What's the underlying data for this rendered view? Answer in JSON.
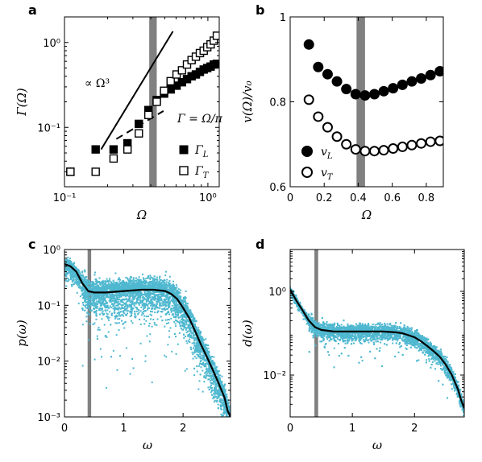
{
  "chart_data": [
    {
      "panel_letter": "a",
      "type": "scatter",
      "xscale": "log",
      "yscale": "log",
      "xlim": [
        0.1,
        1.2
      ],
      "ylim": [
        0.02,
        2.0
      ],
      "xlabel": "Ω",
      "ylabel": "Γ(Ω)",
      "xticks": [
        0.1,
        1
      ],
      "xtick_labels": [
        "10⁻¹",
        "10⁰"
      ],
      "yticks": [
        0.1,
        1
      ],
      "ytick_labels": [
        "10⁻¹",
        "10⁰"
      ],
      "shaded_band": [
        0.39,
        0.44
      ],
      "legend": {
        "position": "bottom-right",
        "entries": [
          "Γ_L",
          "Γ_T"
        ]
      },
      "annotations": [
        "∝ Ω³",
        "Γ = Ω/π"
      ],
      "reference_lines": [
        {
          "label": "∝ Ω³",
          "x": [
            0.18,
            0.57
          ],
          "y": [
            0.055,
            1.35
          ]
        },
        {
          "label": "Γ = Ω/π",
          "x": [
            0.23,
            0.49
          ],
          "y": [
            0.073,
            0.156
          ]
        }
      ],
      "series": [
        {
          "name": "Γ_L",
          "marker": "filled-square",
          "x": [
            0.11,
            0.165,
            0.22,
            0.275,
            0.33,
            0.385,
            0.44,
            0.495,
            0.55,
            0.605,
            0.66,
            0.715,
            0.77,
            0.825,
            0.88,
            0.935,
            0.99,
            1.045,
            1.1,
            1.155
          ],
          "y": [
            0.03,
            0.055,
            0.055,
            0.065,
            0.11,
            0.16,
            0.21,
            0.25,
            0.28,
            0.31,
            0.34,
            0.37,
            0.4,
            0.42,
            0.45,
            0.48,
            0.5,
            0.52,
            0.55,
            0.56
          ]
        },
        {
          "name": "Γ_T",
          "marker": "open-square",
          "x": [
            0.11,
            0.165,
            0.22,
            0.275,
            0.33,
            0.385,
            0.44,
            0.495,
            0.55,
            0.605,
            0.66,
            0.715,
            0.77,
            0.825,
            0.88,
            0.935,
            0.99,
            1.045,
            1.1,
            1.155
          ],
          "y": [
            0.03,
            0.03,
            0.043,
            0.055,
            0.085,
            0.14,
            0.2,
            0.27,
            0.35,
            0.42,
            0.47,
            0.55,
            0.62,
            0.68,
            0.75,
            0.8,
            0.88,
            0.95,
            1.05,
            1.2
          ]
        }
      ]
    },
    {
      "panel_letter": "b",
      "type": "scatter",
      "xlim": [
        0,
        0.9
      ],
      "ylim": [
        0.6,
        1.0
      ],
      "xlabel": "Ω",
      "ylabel": "v(Ω)/v₀",
      "xticks": [
        0,
        0.2,
        0.4,
        0.6,
        0.8
      ],
      "xtick_labels": [
        "0",
        "0.2",
        "0.4",
        "0.6",
        "0.8"
      ],
      "yticks": [
        0.6,
        0.8,
        1
      ],
      "ytick_labels": [
        "0.6",
        "0.8",
        "1"
      ],
      "shaded_band": [
        0.39,
        0.44
      ],
      "legend": {
        "position": "bottom-left",
        "entries": [
          "v_L",
          "v_T"
        ]
      },
      "series": [
        {
          "name": "v_L",
          "marker": "filled-circle",
          "x": [
            0.11,
            0.165,
            0.22,
            0.275,
            0.33,
            0.385,
            0.44,
            0.495,
            0.55,
            0.605,
            0.66,
            0.715,
            0.77,
            0.825,
            0.88
          ],
          "y": [
            0.935,
            0.882,
            0.865,
            0.848,
            0.83,
            0.818,
            0.815,
            0.818,
            0.825,
            0.832,
            0.84,
            0.848,
            0.855,
            0.863,
            0.872
          ]
        },
        {
          "name": "v_T",
          "marker": "open-circle",
          "x": [
            0.11,
            0.165,
            0.22,
            0.275,
            0.33,
            0.385,
            0.44,
            0.495,
            0.55,
            0.605,
            0.66,
            0.715,
            0.77,
            0.825,
            0.88
          ],
          "y": [
            0.805,
            0.765,
            0.74,
            0.718,
            0.7,
            0.688,
            0.684,
            0.684,
            0.686,
            0.69,
            0.694,
            0.698,
            0.702,
            0.706,
            0.708
          ]
        }
      ]
    },
    {
      "panel_letter": "c",
      "type": "scatter",
      "yscale": "log",
      "xlim": [
        0,
        2.8
      ],
      "ylim": [
        0.001,
        1.0
      ],
      "xlabel": "ω",
      "ylabel": "p(ω)",
      "xticks": [
        0,
        1,
        2
      ],
      "xtick_labels": [
        "0",
        "1",
        "2"
      ],
      "yticks": [
        0.001,
        0.01,
        0.1,
        1
      ],
      "ytick_labels": [
        "10⁻³",
        "10⁻²",
        "10⁻¹",
        "10⁰"
      ],
      "shaded_band": [
        0.39,
        0.45
      ],
      "scatter_color": "#4FB8D0",
      "line_color": "#000000",
      "mean_curve": {
        "x": [
          0.0,
          0.1,
          0.2,
          0.3,
          0.4,
          0.5,
          0.7,
          1.0,
          1.3,
          1.5,
          1.7,
          1.8,
          1.9,
          2.0,
          2.1,
          2.2,
          2.3,
          2.4,
          2.5,
          2.6,
          2.7,
          2.75,
          2.8
        ],
        "y": [
          0.55,
          0.5,
          0.4,
          0.25,
          0.18,
          0.17,
          0.17,
          0.18,
          0.19,
          0.19,
          0.18,
          0.16,
          0.13,
          0.09,
          0.06,
          0.035,
          0.02,
          0.012,
          0.007,
          0.004,
          0.0022,
          0.0013,
          0.001
        ]
      }
    },
    {
      "panel_letter": "d",
      "type": "scatter",
      "yscale": "log",
      "xlim": [
        0,
        2.8
      ],
      "ylim": [
        0.001,
        10.0
      ],
      "xlabel": "ω",
      "ylabel": "d(ω)",
      "xticks": [
        0,
        1,
        2
      ],
      "xtick_labels": [
        "0",
        "1",
        "2"
      ],
      "yticks": [
        0.01,
        1
      ],
      "ytick_labels": [
        "10⁻²",
        "10⁰"
      ],
      "shaded_band": [
        0.39,
        0.45
      ],
      "scatter_color": "#4FB8D0",
      "line_color": "#000000",
      "mean_curve": {
        "x": [
          0.0,
          0.1,
          0.2,
          0.3,
          0.4,
          0.5,
          0.7,
          1.0,
          1.3,
          1.5,
          1.7,
          1.8,
          1.9,
          2.0,
          2.1,
          2.2,
          2.3,
          2.4,
          2.5,
          2.6,
          2.7,
          2.75,
          2.8
        ],
        "y": [
          1.1,
          0.6,
          0.35,
          0.2,
          0.14,
          0.12,
          0.11,
          0.11,
          0.11,
          0.11,
          0.105,
          0.1,
          0.09,
          0.08,
          0.065,
          0.05,
          0.038,
          0.028,
          0.018,
          0.01,
          0.0045,
          0.0025,
          0.0016
        ]
      }
    }
  ]
}
